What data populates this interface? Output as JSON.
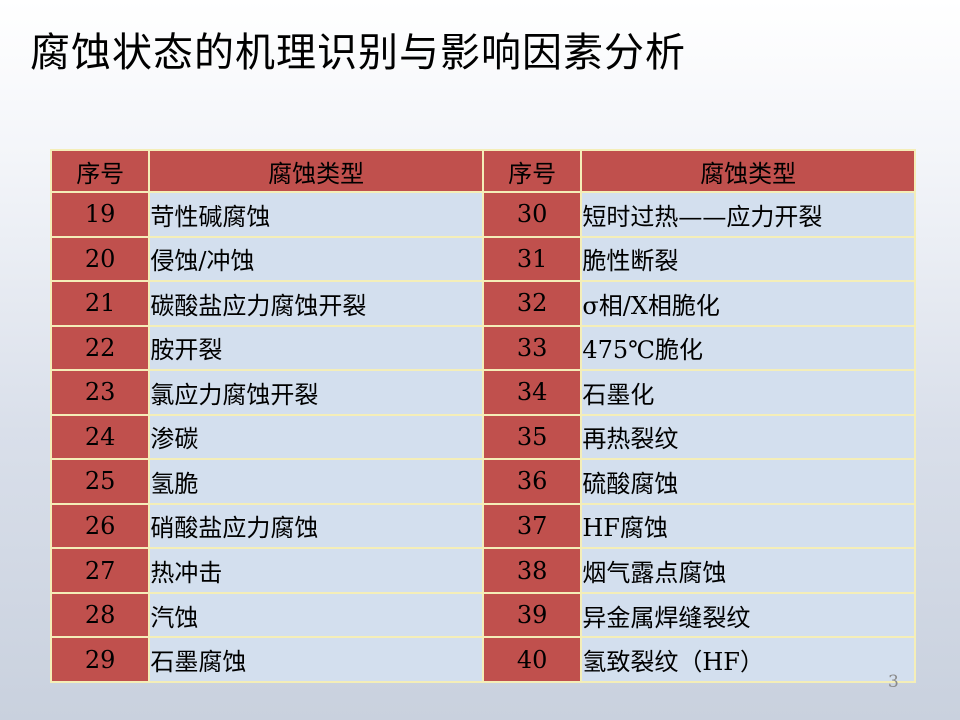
{
  "slide": {
    "title": "腐蚀状态的机理识别与影响因素分析",
    "page_number": "3"
  },
  "table": {
    "headers": [
      "序号",
      "腐蚀类型",
      "序号",
      "腐蚀类型"
    ],
    "rows": [
      [
        "19",
        "苛性碱腐蚀",
        "30",
        "短时过热——应力开裂"
      ],
      [
        "20",
        "侵蚀/冲蚀",
        "31",
        "脆性断裂"
      ],
      [
        "21",
        "碳酸盐应力腐蚀开裂",
        "32",
        "σ相/X相脆化"
      ],
      [
        "22",
        "胺开裂",
        "33",
        "475℃脆化"
      ],
      [
        "23",
        "氯应力腐蚀开裂",
        "34",
        "石墨化"
      ],
      [
        "24",
        "渗碳",
        "35",
        "再热裂纹"
      ],
      [
        "25",
        "氢脆",
        "36",
        "硫酸腐蚀"
      ],
      [
        "26",
        "硝酸盐应力腐蚀",
        "37",
        "HF腐蚀"
      ],
      [
        "27",
        "热冲击",
        "38",
        "烟气露点腐蚀"
      ],
      [
        "28",
        "汽蚀",
        "39",
        "异金属焊缝裂纹"
      ],
      [
        "29",
        "石墨腐蚀",
        "40",
        "氢致裂纹（HF）"
      ]
    ]
  },
  "colors": {
    "header_bg": "#c0504d",
    "number_cell_bg": "#c0504d",
    "type_cell_bg": "#d3dfee",
    "grid_line": "#f4eeb8"
  }
}
